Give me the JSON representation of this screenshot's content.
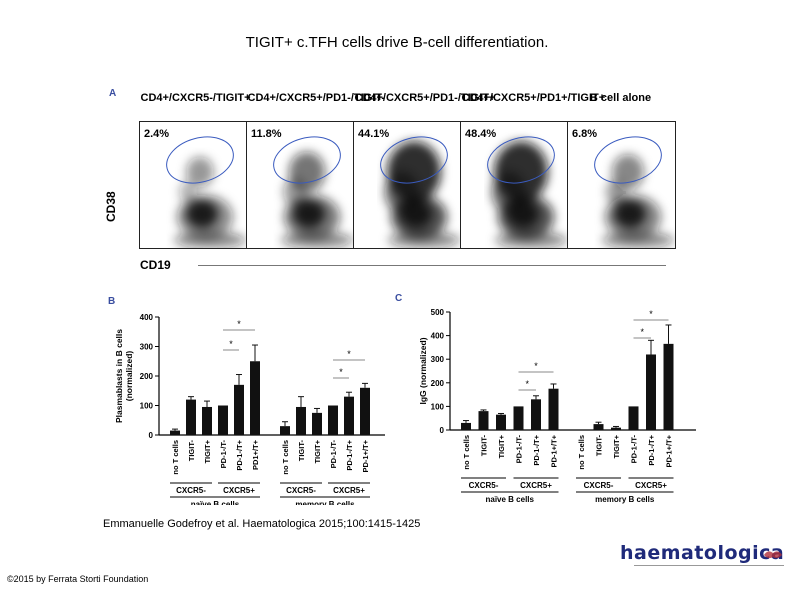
{
  "slide": {
    "title": "TIGIT+ c.TFH cells drive B-cell differentiation.",
    "citation": "Emmanuelle Godefroy et al. Haematologica 2015;100:1415-1425",
    "copyright": "©2015 by Ferrata Storti Foundation",
    "logo_text": "haematologica"
  },
  "panel_a": {
    "letter": "A",
    "y_axis_label": "CD38",
    "x_axis_label": "CD19",
    "plots": [
      {
        "title": "CD4+/CXCR5-/TIGIT+",
        "percent": "2.4%"
      },
      {
        "title": "CD4+/CXCR5+/PD1-/TIGIT-",
        "percent": "11.8%"
      },
      {
        "title": "CD4+/CXCR5+/PD1-/TIGIT+",
        "percent": "44.1%"
      },
      {
        "title": "CD4+/CXCR5+/PD1+/TIGIT+",
        "percent": "48.4%"
      },
      {
        "title": "B cell alone",
        "percent": "6.8%"
      }
    ]
  },
  "chart_data": [
    {
      "panel": "B",
      "type": "bar",
      "ylabel": "Plasmablasts in B cells (normalized)",
      "ylim": [
        0,
        400
      ],
      "yticks": [
        0,
        100,
        200,
        300,
        400
      ],
      "categories": [
        "no T cells",
        "TIGIT-",
        "TIGIT+",
        "PD-1-/T-",
        "PD-1-/T+",
        "PD1+/T+",
        "no T cells",
        "TIGIT-",
        "TIGIT+",
        "PD-1-/T-",
        "PD-1-/T+",
        "PD-1+/T+"
      ],
      "values": [
        15,
        120,
        95,
        100,
        170,
        250,
        30,
        95,
        75,
        100,
        130,
        160
      ],
      "errors": [
        5,
        10,
        20,
        0,
        35,
        55,
        15,
        35,
        15,
        0,
        15,
        15
      ],
      "groups": [
        {
          "label": "naïve B cells",
          "subgroups": [
            "CXCR5-",
            "CXCR5+"
          ]
        },
        {
          "label": "memory B cells",
          "subgroups": [
            "CXCR5-",
            "CXCR5+"
          ]
        }
      ],
      "significance": [
        "*",
        "*",
        "*",
        "*"
      ]
    },
    {
      "panel": "C",
      "type": "bar",
      "ylabel": "IgG (normalized)",
      "ylim": [
        0,
        500
      ],
      "yticks": [
        0,
        100,
        200,
        300,
        400,
        500
      ],
      "categories": [
        "no T cells",
        "TIGIT-",
        "TIGIT+",
        "PD-1-/T-",
        "PD-1-/T+",
        "PD-1+/T+",
        "no T cells",
        "TIGIT-",
        "TIGIT+",
        "PD-1-/T-",
        "PD-1-/T+",
        "PD-1+/T+"
      ],
      "values": [
        30,
        80,
        65,
        100,
        130,
        175,
        0,
        25,
        10,
        100,
        320,
        365
      ],
      "errors": [
        10,
        5,
        5,
        0,
        15,
        20,
        0,
        8,
        5,
        0,
        60,
        80
      ],
      "groups": [
        {
          "label": "naïve B cells",
          "subgroups": [
            "CXCR5-",
            "CXCR5+"
          ]
        },
        {
          "label": "memory B cells",
          "subgroups": [
            "CXCR5-",
            "CXCR5+"
          ]
        }
      ],
      "significance": [
        "*",
        "*",
        "*",
        "*"
      ]
    }
  ]
}
